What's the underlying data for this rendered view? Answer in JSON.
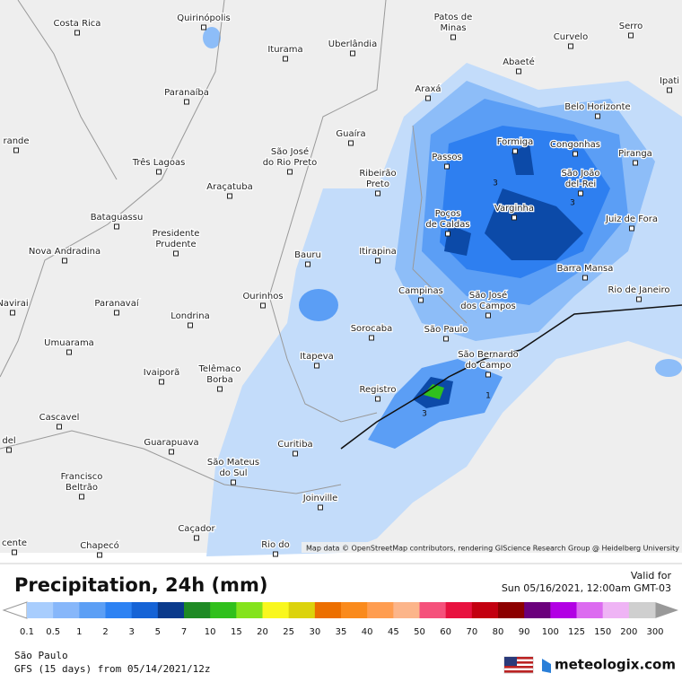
{
  "map": {
    "places": [
      [
        "Costa Rica"
      ],
      [
        "Quirinópolis"
      ],
      [
        "Patos de",
        "Minas"
      ],
      [
        "Curvelo"
      ],
      [
        "Serro"
      ],
      [
        "Paranaíba"
      ],
      [
        "Iturama"
      ],
      [
        "Uberlândia"
      ],
      [
        "Abaeté"
      ],
      [
        "Araxá"
      ],
      [
        "Belo Horizonte"
      ],
      [
        "Ipati"
      ],
      [
        "rande"
      ],
      [
        "Guaíra"
      ],
      [
        "Passos"
      ],
      [
        "Formiga"
      ],
      [
        "Congonhas"
      ],
      [
        "Piranga"
      ],
      [
        "Três Lagoas"
      ],
      [
        "São José",
        "do Rio Preto"
      ],
      [
        "Ribeirão",
        "Preto"
      ],
      [
        "São João",
        "del-Rei"
      ],
      [
        "Araçatuba"
      ],
      [
        "Poços",
        "de Caldas"
      ],
      [
        "Varginha"
      ],
      [
        "Juiz de Fora"
      ],
      [
        "Bataguassu"
      ],
      [
        "Presidente",
        "Prudente"
      ],
      [
        "Nova Andradina"
      ],
      [
        "Itirapina"
      ],
      [
        "Bauru"
      ],
      [
        "Barra Mansa"
      ],
      [
        "Campinas"
      ],
      [
        "São José",
        "dos Campos"
      ],
      [
        "Rio de Janeiro"
      ],
      [
        "Ourinhos"
      ],
      [
        "Paranavaí"
      ],
      [
        "Navirai"
      ],
      [
        "Londrina"
      ],
      [
        "Sorocaba"
      ],
      [
        "São Paulo"
      ],
      [
        "São Bernardo",
        "do Campo"
      ],
      [
        "Umuarama"
      ],
      [
        "Itapeva"
      ],
      [
        "Ivaiporã"
      ],
      [
        "Telêmaco",
        "Borba"
      ],
      [
        "Registro"
      ],
      [
        "Cascavel"
      ],
      [
        "del"
      ],
      [
        "Guarapuava"
      ],
      [
        "Curitiba"
      ],
      [
        "São Mateus",
        "do Sul"
      ],
      [
        "Francisco",
        "Beltrão"
      ],
      [
        "Joinville"
      ],
      [
        "Caçador"
      ],
      [
        "cente"
      ],
      [
        "Chapecó"
      ],
      [
        "Rio do"
      ]
    ],
    "contour_labels": [
      "3",
      "3",
      "3",
      "1"
    ],
    "attribution": "Map data © OpenStreetMap contributors, rendering GIScience Research Group @ Heidelberg University"
  },
  "footer": {
    "title": "Precipitation, 24h (mm)",
    "valid_label": "Valid for",
    "valid_time": "Sun 05/16/2021, 12:00am GMT-03",
    "legend": {
      "labels": [
        0.1,
        0.5,
        1,
        2,
        3,
        5,
        7,
        10,
        15,
        20,
        25,
        30,
        35,
        40,
        45,
        50,
        60,
        70,
        80,
        90,
        100,
        125,
        150,
        200,
        300
      ],
      "colors": [
        "#a8cdfd",
        "#87b7fa",
        "#5c9ff5",
        "#2d82f3",
        "#1563d6",
        "#0a3a8c",
        "#1e8a24",
        "#30c01c",
        "#84e31c",
        "#f9f71e",
        "#dcd30c",
        "#ec6f00",
        "#fa8a1c",
        "#ff9d50",
        "#fcb58a",
        "#f5517b",
        "#e8123f",
        "#c30010",
        "#8c0000",
        "#6b007c",
        "#b200e4",
        "#dc6bf0",
        "#efb4f5",
        "#cfcfcf"
      ]
    },
    "location": "São Paulo",
    "model": "GFS (15 days) from  05/14/2021/12z",
    "brand": "meteologix.com"
  }
}
